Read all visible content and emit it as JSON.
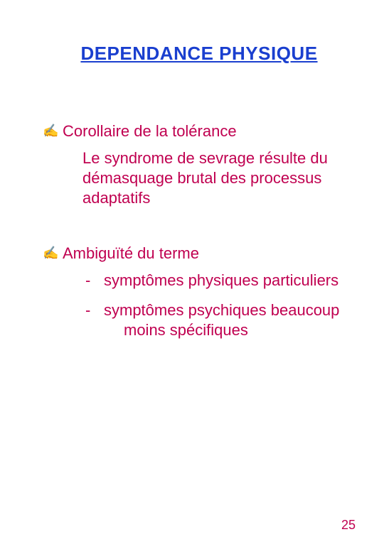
{
  "colors": {
    "title": "#1a3fcf",
    "bullet_icon": "#008000",
    "body_text": "#c00050",
    "page_number": "#c00050",
    "background": "#ffffff"
  },
  "title": "DEPENDANCE PHYSIQUE",
  "items": [
    {
      "heading": "Corollaire de la tolérance",
      "sub": "Le syndrome de sevrage résulte du démasquage brutal des processus adaptatifs",
      "dashes": []
    },
    {
      "heading": "Ambiguïté du terme",
      "sub": "",
      "dashes": [
        {
          "line1": "symptômes physiques particuliers",
          "line2": ""
        },
        {
          "line1": "symptômes psychiques beaucoup",
          "line2": "moins spécifiques"
        }
      ]
    }
  ],
  "page_number": "25",
  "bullet_glyph": "✍"
}
